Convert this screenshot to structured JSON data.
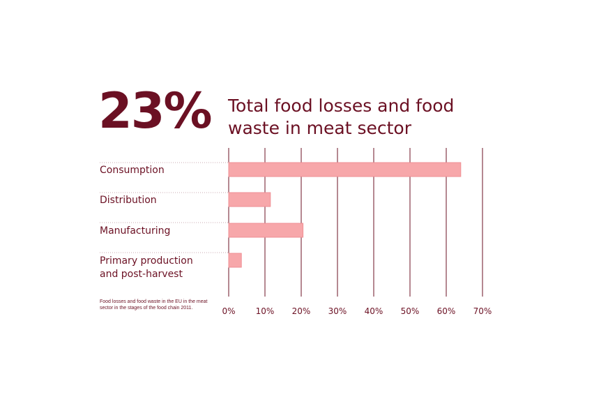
{
  "header": {
    "stat": "23%",
    "title": "Total food losses and food waste in meat sector"
  },
  "footnote": "Food losses and food waste in the EU in the meat sector in the stages of the food chain 2011.",
  "colors": {
    "text": "#6b1023",
    "bar_fill": "#f7a7aa",
    "bar_stroke": "#ef8f94",
    "gridline": "#6b1023",
    "separator": "#c9a9b0"
  },
  "chart_data": {
    "type": "bar",
    "orientation": "horizontal",
    "categories": [
      "Consumption",
      "Distribution",
      "Manufacturing",
      "Primary production\nand post-harvest"
    ],
    "values": [
      64,
      11.5,
      20.5,
      3.5
    ],
    "xlim": [
      0,
      70
    ],
    "xticks": [
      "0%",
      "10%",
      "20%",
      "30%",
      "40%",
      "50%",
      "60%",
      "70%"
    ],
    "grid": true
  }
}
